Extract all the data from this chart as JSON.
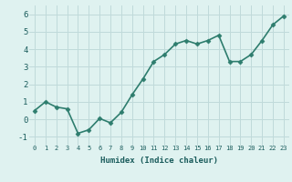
{
  "x": [
    0,
    1,
    2,
    3,
    4,
    5,
    6,
    7,
    8,
    9,
    10,
    11,
    12,
    13,
    14,
    15,
    16,
    17,
    18,
    19,
    20,
    21,
    22,
    23
  ],
  "y": [
    0.5,
    1.0,
    0.7,
    0.6,
    -0.8,
    -0.6,
    0.05,
    -0.2,
    0.4,
    1.4,
    2.3,
    3.3,
    3.7,
    4.3,
    4.5,
    4.3,
    4.5,
    4.8,
    3.3,
    3.3,
    3.7,
    4.5,
    5.4,
    5.9
  ],
  "xlabel": "Humidex (Indice chaleur)",
  "ylabel": "",
  "xlim": [
    -0.5,
    23.5
  ],
  "ylim": [
    -1.5,
    6.5
  ],
  "yticks": [
    -1,
    0,
    1,
    2,
    3,
    4,
    5,
    6
  ],
  "ytick_labels": [
    "-1",
    "0",
    "1",
    "2",
    "3",
    "4",
    "5",
    "6"
  ],
  "xticks": [
    0,
    1,
    2,
    3,
    4,
    5,
    6,
    7,
    8,
    9,
    10,
    11,
    12,
    13,
    14,
    15,
    16,
    17,
    18,
    19,
    20,
    21,
    22,
    23
  ],
  "xtick_labels": [
    "0",
    "1",
    "2",
    "3",
    "4",
    "5",
    "6",
    "7",
    "8",
    "9",
    "10",
    "11",
    "12",
    "13",
    "14",
    "15",
    "16",
    "17",
    "18",
    "19",
    "20",
    "21",
    "22",
    "23"
  ],
  "line_color": "#2e7d6e",
  "marker": "D",
  "marker_size": 2.5,
  "bg_color": "#dff2f0",
  "grid_color": "#c0dada",
  "axis_label_color": "#1a5c5c",
  "tick_color": "#1a5c5c",
  "line_width": 1.2
}
